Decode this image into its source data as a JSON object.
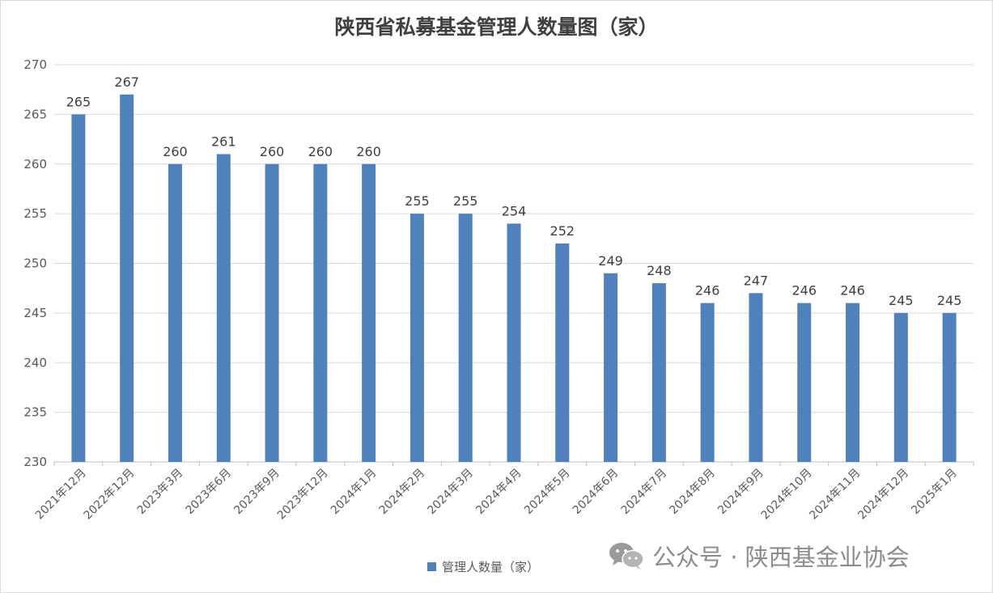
{
  "chart_data": {
    "type": "bar",
    "title": "陕西省私募基金管理人数量图（家）",
    "categories": [
      "2021年12月",
      "2022年12月",
      "2023年3月",
      "2023年6月",
      "2023年9月",
      "2023年12月",
      "2024年1月",
      "2024年2月",
      "2024年3月",
      "2024年4月",
      "2024年5月",
      "2024年6月",
      "2024年7月",
      "2024年8月",
      "2024年9月",
      "2024年10月",
      "2024年11月",
      "2024年12月",
      "2025年1月"
    ],
    "series": [
      {
        "name": "管理人数量（家）",
        "values": [
          265,
          267,
          260,
          261,
          260,
          260,
          260,
          255,
          255,
          254,
          252,
          249,
          248,
          246,
          247,
          246,
          246,
          245,
          245
        ]
      }
    ],
    "yticks": [
      "230",
      "235",
      "240",
      "245",
      "250",
      "255",
      "260",
      "265",
      "270"
    ],
    "ylim": [
      230,
      270
    ],
    "xlabel": "",
    "ylabel": "",
    "grid": true,
    "legend_position": "bottom",
    "bar_color": "#4f81bd"
  },
  "watermark": {
    "icon": "wechat-icon",
    "text": "公众号 · 陕西基金业协会"
  }
}
